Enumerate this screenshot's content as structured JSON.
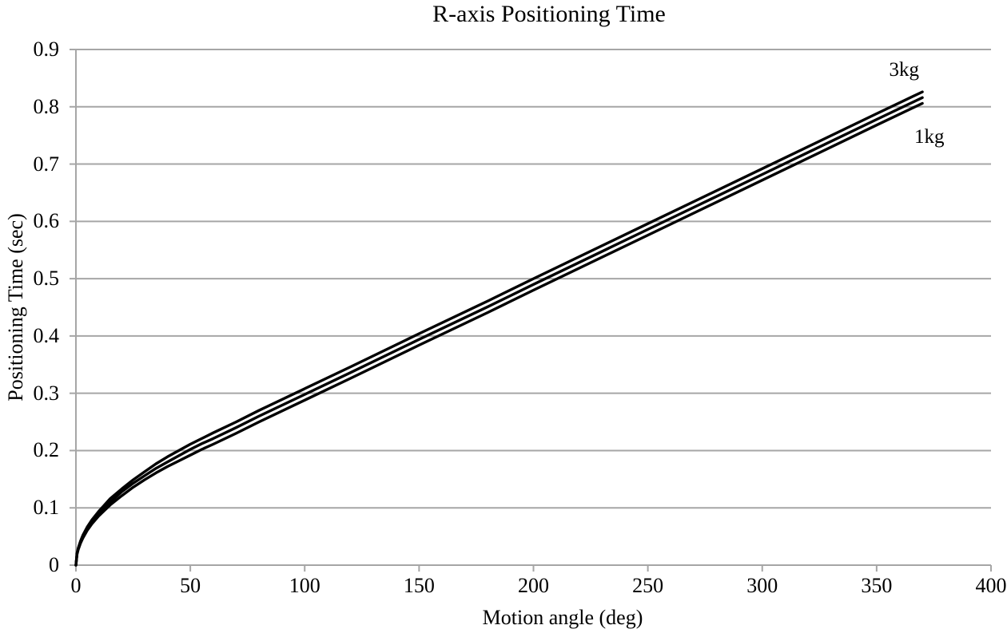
{
  "title": "R-axis Positioning Time",
  "x_axis": {
    "label": "Motion angle (deg)",
    "tick_labels": [
      "0",
      "50",
      "100",
      "150",
      "200",
      "250",
      "300",
      "350",
      "400"
    ]
  },
  "y_axis": {
    "label": "Positioning Time (sec)",
    "tick_labels": [
      "0",
      "0.1",
      "0.2",
      "0.3",
      "0.4",
      "0.5",
      "0.6",
      "0.7",
      "0.8",
      "0.9"
    ]
  },
  "colors": {
    "series": "#000000",
    "grid": "#a6a6a6",
    "axis": "#a6a6a6",
    "text": "#000000",
    "background": "#ffffff"
  },
  "chart_data": {
    "type": "line",
    "title": "R-axis Positioning Time",
    "xlabel": "Motion angle (deg)",
    "ylabel": "Positioning Time (sec)",
    "xlim": [
      0,
      400
    ],
    "ylim": [
      0,
      0.9
    ],
    "grid": "horizontal",
    "legend": "inline-labels",
    "x": [
      0,
      0.5,
      1,
      2,
      3,
      5,
      7,
      10,
      15,
      20,
      25,
      30,
      35,
      40,
      45,
      50,
      55,
      60,
      70,
      80,
      100,
      120,
      150,
      180,
      200,
      250,
      300,
      350,
      370
    ],
    "series": [
      {
        "name": "3kg",
        "label": "3kg",
        "label_at": [
          362,
          0.864
        ],
        "values": [
          0,
          0.021,
          0.03,
          0.042,
          0.052,
          0.067,
          0.079,
          0.094,
          0.116,
          0.133,
          0.149,
          0.163,
          0.177,
          0.189,
          0.2,
          0.211,
          0.221,
          0.231,
          0.25,
          0.27,
          0.308,
          0.346,
          0.404,
          0.461,
          0.5,
          0.596,
          0.692,
          0.788,
          0.826
        ]
      },
      {
        "name": "middle-series",
        "label": "",
        "label_at": null,
        "values": [
          0,
          0.02,
          0.029,
          0.04,
          0.049,
          0.064,
          0.075,
          0.09,
          0.11,
          0.128,
          0.143,
          0.156,
          0.169,
          0.18,
          0.191,
          0.202,
          0.212,
          0.221,
          0.24,
          0.26,
          0.298,
          0.336,
          0.394,
          0.451,
          0.49,
          0.586,
          0.682,
          0.778,
          0.816
        ]
      },
      {
        "name": "1kg",
        "label": "1kg",
        "label_at": [
          373,
          0.747
        ],
        "values": [
          0,
          0.019,
          0.027,
          0.038,
          0.047,
          0.061,
          0.072,
          0.086,
          0.105,
          0.121,
          0.136,
          0.149,
          0.161,
          0.172,
          0.182,
          0.192,
          0.202,
          0.211,
          0.23,
          0.25,
          0.288,
          0.326,
          0.384,
          0.441,
          0.48,
          0.576,
          0.672,
          0.768,
          0.806
        ]
      }
    ]
  }
}
